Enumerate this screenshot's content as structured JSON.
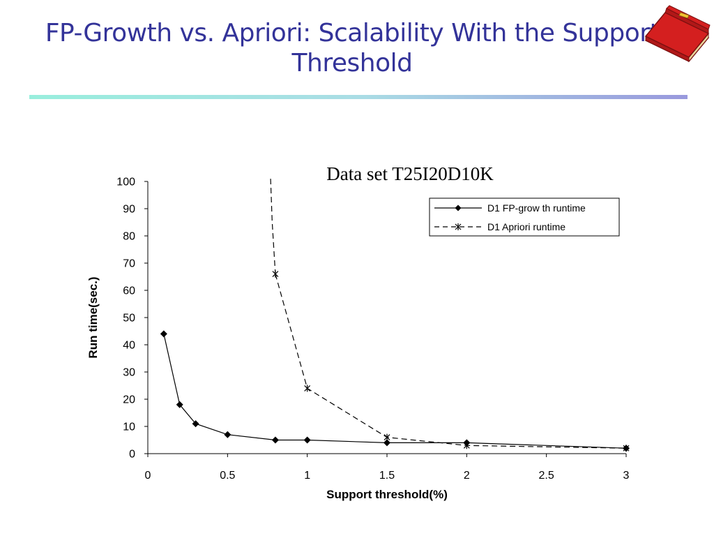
{
  "slide": {
    "title": "FP-Growth vs. Apriori: Scalability With the Support\nThreshold"
  },
  "icons": {
    "book": "book-icon"
  },
  "colors": {
    "title": "#333399",
    "book_red": "#d41f1f",
    "book_pages": "#f4e3b2",
    "rule_start": "#99eedd",
    "rule_end": "#9999dd"
  },
  "chart_data": {
    "type": "line",
    "title": "Data set T25I20D10K",
    "xlabel": "Support threshold(%)",
    "ylabel": "Run time(sec.)",
    "xlim": [
      0,
      3
    ],
    "ylim": [
      0,
      100
    ],
    "xticks": [
      0,
      0.5,
      1,
      1.5,
      2,
      2.5,
      3
    ],
    "yticks": [
      0,
      10,
      20,
      30,
      40,
      50,
      60,
      70,
      80,
      90,
      100
    ],
    "xtick_labels": [
      "0",
      "0.5",
      "1",
      "1.5",
      "2",
      "2.5",
      "3"
    ],
    "ytick_labels": [
      "0",
      "10",
      "20",
      "30",
      "40",
      "50",
      "60",
      "70",
      "80",
      "90",
      "100"
    ],
    "grid": false,
    "legend_position": "top-right",
    "series": [
      {
        "name": "D1 FP-grow th runtime",
        "style": "solid",
        "marker": "diamond",
        "x": [
          0.1,
          0.2,
          0.3,
          0.5,
          0.8,
          1,
          1.5,
          2,
          3
        ],
        "y": [
          44,
          18,
          11,
          7,
          5,
          5,
          4,
          4,
          2
        ]
      },
      {
        "name": "D1 Apriori runtime",
        "style": "dashed",
        "marker": "star",
        "x": [
          0.8,
          1,
          1.5,
          2,
          3
        ],
        "y": [
          66,
          24,
          6,
          3,
          2
        ]
      }
    ],
    "apriori_offscale_lead": {
      "x": [
        0.77,
        0.78,
        0.8
      ],
      "y": [
        101,
        85,
        66
      ]
    }
  }
}
